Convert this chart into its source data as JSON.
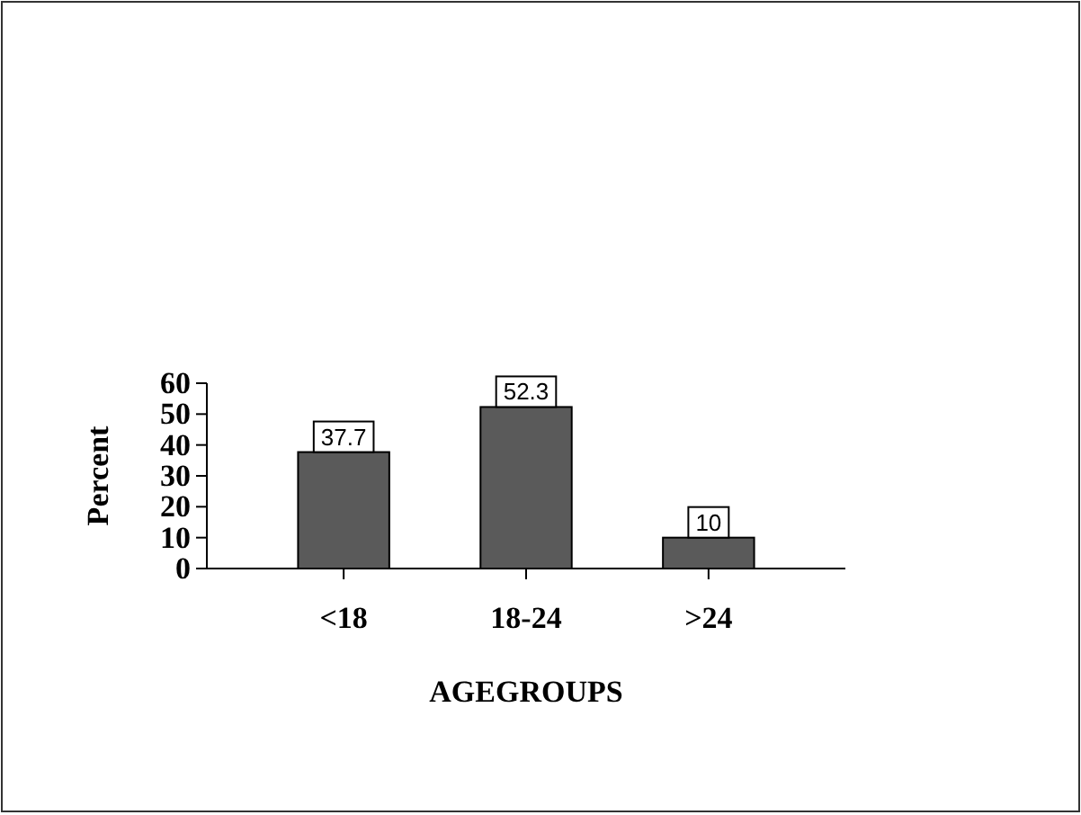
{
  "chart_data": {
    "type": "bar",
    "xlabel": "AGEGROUPS",
    "ylabel": "Percent",
    "categories": [
      "<18",
      "18-24",
      ">24"
    ],
    "values": [
      37.7,
      52.3,
      10
    ],
    "color": "#5a5a5a",
    "ylim": [
      0,
      60
    ],
    "yticks": [
      0,
      10,
      20,
      30,
      40,
      50,
      60
    ],
    "data_labels": true
  }
}
